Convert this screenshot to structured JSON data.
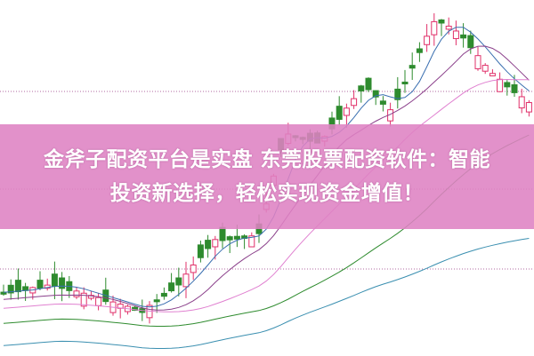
{
  "headline": {
    "line1": "金斧子配资平台是实盘 东莞股票配资软件：智能",
    "line2": "投资新选择，轻松实现资金增值！"
  },
  "colors": {
    "banner": "#de82c3",
    "candle_up": "#e0306a",
    "candle_down": "#2e8b2e",
    "grid": "#b06aa0"
  }
}
